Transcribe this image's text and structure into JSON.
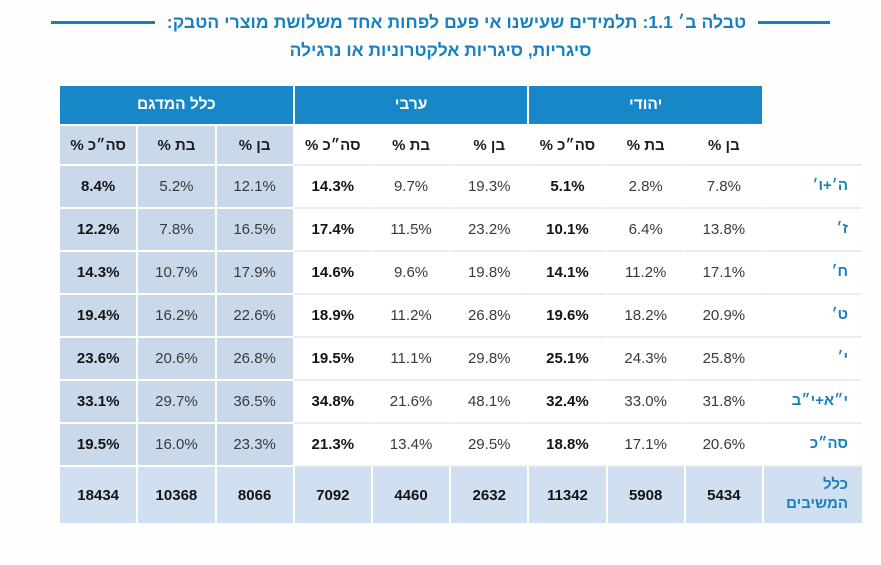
{
  "title": {
    "line1": "טבלה ב׳ 1.1: תלמידים שעישנו אי פעם לפחות אחד משלושת מוצרי הטבק:",
    "line2": "סיגריות, סיגריות אלקטרוניות או נרגילה"
  },
  "colors": {
    "header_blue": "#1787c8",
    "title_blue": "#1581c4",
    "light_column_bg": "#c9d9ea",
    "totals_row_bg": "#d0e0f0",
    "row_label_blue": "#1581be"
  },
  "table": {
    "groups": [
      {
        "key": "yehudi",
        "label": "יהודי"
      },
      {
        "key": "aravi",
        "label": "ערבי"
      },
      {
        "key": "klal",
        "label": "כלל המדגם"
      }
    ],
    "subheaders": {
      "ben": "בן %",
      "bat": "בת %",
      "total": "סה״כ %"
    },
    "cell_order": [
      "yehudi.ben",
      "yehudi.bat",
      "yehudi.total",
      "aravi.ben",
      "aravi.bat",
      "aravi.total",
      "klal.ben",
      "klal.bat",
      "klal.total"
    ],
    "rows": [
      {
        "label": "ה׳+ו׳",
        "totals": false,
        "values": {
          "yehudi": {
            "ben": "7.8%",
            "bat": "2.8%",
            "total": "5.1%"
          },
          "aravi": {
            "ben": "19.3%",
            "bat": "9.7%",
            "total": "14.3%"
          },
          "klal": {
            "ben": "12.1%",
            "bat": "5.2%",
            "total": "8.4%"
          }
        }
      },
      {
        "label": "ז׳",
        "totals": false,
        "values": {
          "yehudi": {
            "ben": "13.8%",
            "bat": "6.4%",
            "total": "10.1%"
          },
          "aravi": {
            "ben": "23.2%",
            "bat": "11.5%",
            "total": "17.4%"
          },
          "klal": {
            "ben": "16.5%",
            "bat": "7.8%",
            "total": "12.2%"
          }
        }
      },
      {
        "label": "ח׳",
        "totals": false,
        "values": {
          "yehudi": {
            "ben": "17.1%",
            "bat": "11.2%",
            "total": "14.1%"
          },
          "aravi": {
            "ben": "19.8%",
            "bat": "9.6%",
            "total": "14.6%"
          },
          "klal": {
            "ben": "17.9%",
            "bat": "10.7%",
            "total": "14.3%"
          }
        }
      },
      {
        "label": "ט׳",
        "totals": false,
        "values": {
          "yehudi": {
            "ben": "20.9%",
            "bat": "18.2%",
            "total": "19.6%"
          },
          "aravi": {
            "ben": "26.8%",
            "bat": "11.2%",
            "total": "18.9%"
          },
          "klal": {
            "ben": "22.6%",
            "bat": "16.2%",
            "total": "19.4%"
          }
        }
      },
      {
        "label": "י׳",
        "totals": false,
        "values": {
          "yehudi": {
            "ben": "25.8%",
            "bat": "24.3%",
            "total": "25.1%"
          },
          "aravi": {
            "ben": "29.8%",
            "bat": "11.1%",
            "total": "19.5%"
          },
          "klal": {
            "ben": "26.8%",
            "bat": "20.6%",
            "total": "23.6%"
          }
        }
      },
      {
        "label": "י״א+י״ב",
        "totals": false,
        "values": {
          "yehudi": {
            "ben": "31.8%",
            "bat": "33.0%",
            "total": "32.4%"
          },
          "aravi": {
            "ben": "48.1%",
            "bat": "21.6%",
            "total": "34.8%"
          },
          "klal": {
            "ben": "36.5%",
            "bat": "29.7%",
            "total": "33.1%"
          }
        }
      },
      {
        "label": "סה״כ",
        "totals": false,
        "values": {
          "yehudi": {
            "ben": "20.6%",
            "bat": "17.1%",
            "total": "18.8%"
          },
          "aravi": {
            "ben": "29.5%",
            "bat": "13.4%",
            "total": "21.3%"
          },
          "klal": {
            "ben": "23.3%",
            "bat": "16.0%",
            "total": "19.5%"
          }
        }
      },
      {
        "label": "כלל המשיבים",
        "totals": true,
        "values": {
          "yehudi": {
            "ben": "5434",
            "bat": "5908",
            "total": "11342"
          },
          "aravi": {
            "ben": "2632",
            "bat": "4460",
            "total": "7092"
          },
          "klal": {
            "ben": "8066",
            "bat": "10368",
            "total": "18434"
          }
        }
      }
    ]
  }
}
